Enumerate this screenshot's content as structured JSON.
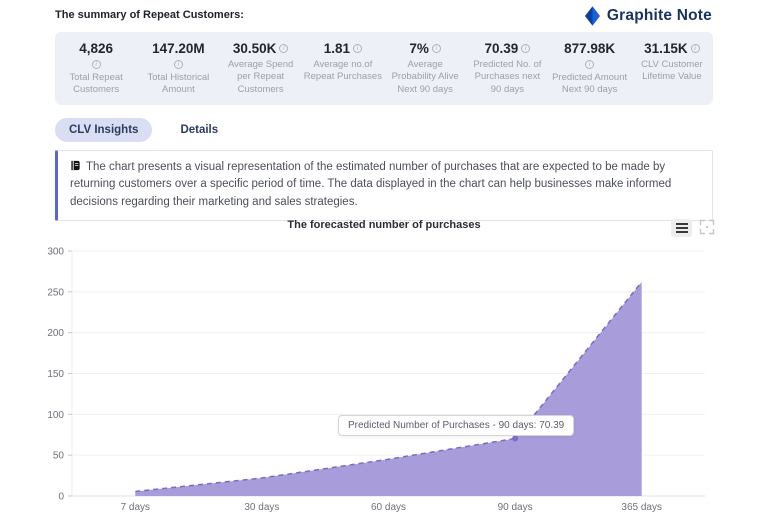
{
  "header": {
    "title": "The summary of Repeat Customers:",
    "logo_text": "Graphite Note"
  },
  "stats": [
    {
      "value": "4,826",
      "label": "Total Repeat Customers",
      "info_icon_below": true
    },
    {
      "value": "147.20M",
      "label": "Total Historical Amount",
      "info_icon_below": true
    },
    {
      "value": "30.50K",
      "label": "Average Spend per Repeat Customers",
      "info_icon_below": false
    },
    {
      "value": "1.81",
      "label": "Average no.of Repeat Purchases",
      "info_icon_below": false
    },
    {
      "value": "7%",
      "label": "Average Probability Alive Next 90 days",
      "info_icon_below": false
    },
    {
      "value": "70.39",
      "label": "Predicted No. of Purchases next 90 days",
      "info_icon_below": false
    },
    {
      "value": "877.98K",
      "label": "Predicted Amount Next 90 days",
      "info_icon_below": true
    },
    {
      "value": "31.15K",
      "label": "CLV Customer Lifetime Value",
      "info_icon_below": false
    }
  ],
  "tabs": [
    {
      "label": "CLV Insights",
      "active": true
    },
    {
      "label": "Details",
      "active": false
    }
  ],
  "info_box": {
    "text": "The chart presents a visual representation of the estimated number of purchases that are expected to be made by returning customers over a specific period of time. The data displayed in the chart can help businesses make informed decisions regarding their marketing and sales strategies."
  },
  "chart": {
    "tooltip_text": "Predicted Number of Purchases - 90 days: 70.39"
  },
  "chart_data": {
    "type": "area",
    "title": "The forecasted number of purchases",
    "categories": [
      "7 days",
      "30 days",
      "60 days",
      "90 days",
      "365 days"
    ],
    "series": [
      {
        "name": "Predicted Number of Purchases",
        "values": [
          5.5,
          22,
          45,
          70.39,
          262
        ]
      }
    ],
    "highlight_index": 3,
    "highlight_value": 70.39,
    "ylim": [
      0,
      300
    ],
    "ytick_step": 50,
    "grid": true,
    "legend": "none",
    "colors": {
      "area_fill": "#a89dda",
      "line": "#7e6dc8",
      "grid": "#f0f0f2",
      "axis_text": "#6e7079"
    }
  }
}
